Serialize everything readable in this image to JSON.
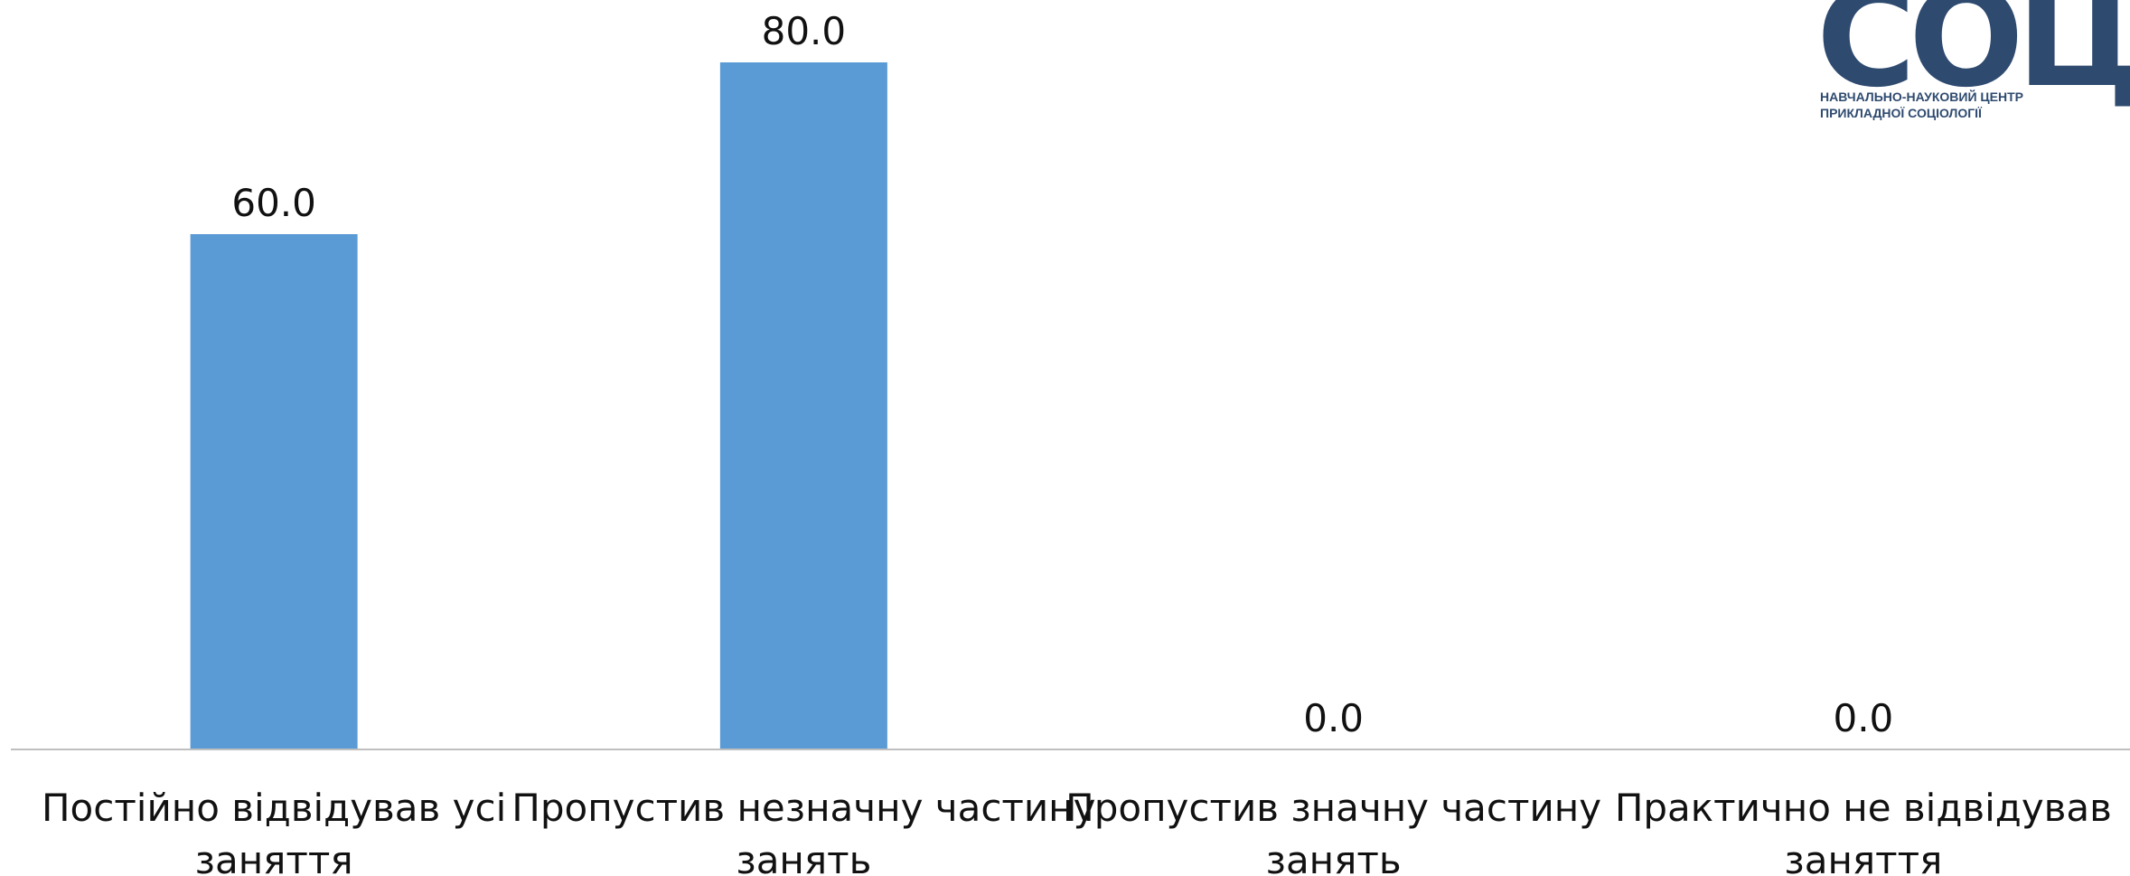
{
  "chart_data": {
    "type": "bar",
    "categories": [
      [
        "Постійно відвідував усі",
        "заняття"
      ],
      [
        "Пропустив незначну частину",
        "занять"
      ],
      [
        "Пропустив значну частину",
        "занять"
      ],
      [
        "Практично не відвідував",
        "заняття"
      ]
    ],
    "values": [
      60.0,
      80.0,
      0.0,
      0.0
    ],
    "value_labels": [
      "60.0",
      "80.0",
      "0.0",
      "0.0"
    ],
    "title": "",
    "xlabel": "",
    "ylabel": "",
    "ylim": [
      0,
      80
    ],
    "grid": false,
    "legend": "none",
    "bar_color": "#5b9bd5",
    "axis_color": "#bfbfbf"
  },
  "logo": {
    "word": "СОЦІС",
    "subtitle_line1": "НАВЧАЛЬНО-НАУКОВИЙ ЦЕНТР",
    "subtitle_line2": "ПРИКЛАДНОЇ СОЦІОЛОГІЇ",
    "color": "#2e4a6f"
  }
}
